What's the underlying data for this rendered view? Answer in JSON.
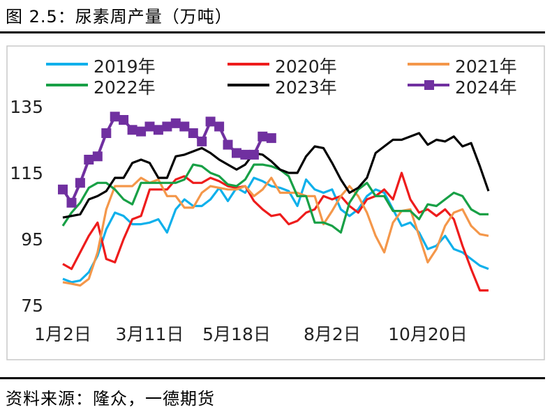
{
  "figure_title": "图 2.5：尿素周产量（万吨）",
  "source": "资料来源：隆众，一德期货",
  "chart_data": {
    "type": "line",
    "title": "尿素周产量（万吨）",
    "xlabel": "",
    "ylabel": "",
    "ylim": [
      75,
      135
    ],
    "yticks": [
      75,
      95,
      115,
      135
    ],
    "xtick_labels": [
      "1月2日",
      "3月11日",
      "5月18日",
      "8月2日",
      "10月20日"
    ],
    "xtick_index": [
      0,
      10,
      20,
      31,
      42
    ],
    "legend_position": "top",
    "grid": false,
    "series": [
      {
        "name": "2019年",
        "color": "#0FB0EB",
        "marker": "none",
        "values": [
          83,
          82,
          82.5,
          85,
          90,
          98,
          103,
          102,
          99.5,
          99.5,
          100,
          101,
          97,
          104,
          107,
          105,
          105,
          107,
          110.5,
          106.5,
          110.5,
          109,
          113.5,
          112.5,
          111,
          110.5,
          109.5,
          105,
          113,
          110,
          109,
          110,
          104,
          102,
          104,
          108,
          110,
          109,
          104,
          99,
          100,
          97,
          92,
          93,
          96,
          92,
          91,
          89,
          87,
          86
        ]
      },
      {
        "name": "2020年",
        "color": "#EE1C1C",
        "marker": "none",
        "values": [
          87.5,
          86,
          91,
          96,
          100,
          89,
          88,
          95,
          101,
          102,
          110,
          110,
          110,
          113,
          114,
          112,
          112,
          113.5,
          112.5,
          111,
          110.5,
          111,
          106.5,
          104,
          102,
          102.5,
          99.5,
          100.5,
          103,
          104,
          108,
          107,
          108,
          105,
          103,
          107,
          108,
          110,
          107,
          115,
          107,
          103,
          104,
          102,
          104,
          101,
          93,
          86,
          79.5,
          79.5
        ]
      },
      {
        "name": "2021年",
        "color": "#F4974A",
        "marker": "none",
        "values": [
          82,
          81.5,
          81,
          83,
          91,
          104,
          111,
          111,
          111,
          113.5,
          112,
          113,
          108,
          108,
          104.5,
          104.5,
          109,
          111,
          110.5,
          110,
          110,
          111,
          108,
          110,
          113.5,
          109,
          109,
          109,
          108,
          108,
          99.5,
          103.5,
          108,
          111,
          108,
          103,
          96,
          91,
          100,
          103.5,
          104,
          96,
          88,
          92,
          99,
          103,
          104,
          99,
          96.5,
          96
        ]
      },
      {
        "name": "2022年",
        "color": "#18A046",
        "marker": "none",
        "values": [
          99,
          103,
          106,
          110.5,
          112,
          112,
          110,
          107,
          105.5,
          112,
          112,
          112,
          112,
          112,
          113,
          117.5,
          117,
          115,
          114,
          111.5,
          111,
          113,
          117.5,
          117.5,
          117,
          116,
          114,
          108,
          108,
          100,
          100,
          99,
          97,
          106,
          110,
          112,
          108,
          108,
          103.5,
          103.5,
          103.5,
          101,
          105.5,
          105,
          107,
          109,
          108,
          104,
          102.5,
          102.5
        ]
      },
      {
        "name": "2023年",
        "color": "#000000",
        "marker": "none",
        "values": [
          101.5,
          102,
          102.5,
          107,
          108,
          109.5,
          113.5,
          113.5,
          118,
          119,
          118,
          113.5,
          113.5,
          120,
          120.5,
          121.5,
          122.5,
          121,
          119,
          117.5,
          116,
          117.5,
          121,
          120.5,
          118.5,
          116,
          115,
          115,
          120,
          123,
          122.5,
          118,
          113,
          109,
          110.5,
          113.5,
          121,
          123,
          125,
          125,
          126,
          127,
          123.5,
          125,
          124.5,
          126,
          123,
          124,
          117,
          109.5
        ]
      },
      {
        "name": "2024年",
        "color": "#7030A0",
        "marker": "square",
        "values": [
          110,
          106,
          112,
          119,
          120,
          127,
          132,
          131,
          128,
          127.5,
          129,
          128,
          129,
          130,
          129,
          127,
          124.5,
          130.5,
          129,
          123.5,
          121,
          120.5,
          120.5,
          126,
          125.5
        ]
      }
    ]
  }
}
